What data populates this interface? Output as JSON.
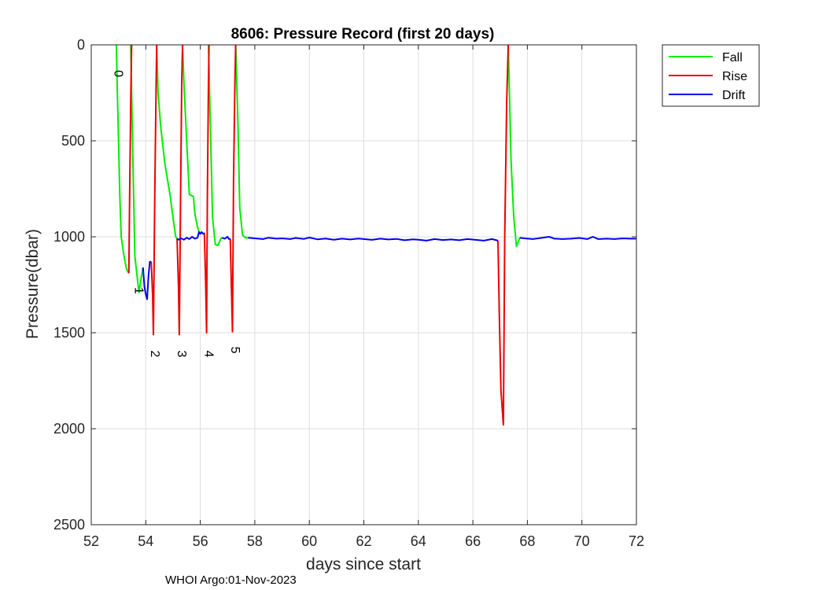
{
  "chart_data": {
    "type": "line",
    "title": "8606: Pressure Record (first 20 days)",
    "xlabel": "days since start",
    "ylabel": "Pressure(dbar)",
    "xlim": [
      52,
      72
    ],
    "ylim": [
      0,
      2500
    ],
    "y_reversed": true,
    "grid": true,
    "xticks": [
      52,
      54,
      56,
      58,
      60,
      62,
      64,
      66,
      68,
      70,
      72
    ],
    "yticks": [
      0,
      500,
      1000,
      1500,
      2000,
      2500
    ],
    "legend_position": "outside-top-right",
    "footer": "WHOI Argo:01-Nov-2023",
    "series": [
      {
        "name": "Fall",
        "color": "#00ee00",
        "segments": [
          [
            [
              52.92,
              0
            ],
            [
              52.95,
              200
            ],
            [
              53.0,
              500
            ],
            [
              53.05,
              800
            ],
            [
              53.1,
              1000
            ],
            [
              53.2,
              1100
            ],
            [
              53.3,
              1170
            ],
            [
              53.38,
              1190
            ]
          ],
          [
            [
              53.45,
              0
            ],
            [
              53.5,
              400
            ],
            [
              53.6,
              1100
            ],
            [
              53.75,
              1290
            ],
            [
              53.85,
              1200
            ],
            [
              53.9,
              1160
            ]
          ],
          [
            [
              54.4,
              0
            ],
            [
              54.45,
              250
            ],
            [
              54.55,
              430
            ],
            [
              54.7,
              620
            ],
            [
              54.9,
              790
            ],
            [
              55.0,
              900
            ],
            [
              55.1,
              1000
            ],
            [
              55.15,
              1010
            ]
          ],
          [
            [
              55.35,
              0
            ],
            [
              55.4,
              200
            ],
            [
              55.5,
              500
            ],
            [
              55.6,
              780
            ],
            [
              55.75,
              790
            ],
            [
              55.8,
              880
            ],
            [
              55.9,
              950
            ],
            [
              55.95,
              975
            ]
          ],
          [
            [
              56.3,
              0
            ],
            [
              56.35,
              300
            ],
            [
              56.45,
              900
            ],
            [
              56.55,
              1040
            ],
            [
              56.65,
              1045
            ],
            [
              56.75,
              1010
            ],
            [
              56.8,
              1005
            ]
          ],
          [
            [
              57.3,
              0
            ],
            [
              57.38,
              400
            ],
            [
              57.45,
              850
            ],
            [
              57.55,
              990
            ],
            [
              57.65,
              1005
            ],
            [
              57.75,
              1005
            ]
          ],
          [
            [
              67.3,
              0
            ],
            [
              67.35,
              300
            ],
            [
              67.4,
              600
            ],
            [
              67.5,
              900
            ],
            [
              67.6,
              1050
            ],
            [
              67.68,
              1020
            ],
            [
              67.72,
              1005
            ]
          ]
        ]
      },
      {
        "name": "Rise",
        "color": "#ee0000",
        "segments": [
          [
            [
              53.38,
              1190
            ],
            [
              53.4,
              900
            ],
            [
              53.45,
              300
            ],
            [
              53.48,
              0
            ]
          ],
          [
            [
              54.2,
              1130
            ],
            [
              54.25,
              1300
            ],
            [
              54.28,
              1510
            ],
            [
              54.33,
              800
            ],
            [
              54.38,
              200
            ],
            [
              54.4,
              0
            ]
          ],
          [
            [
              55.15,
              1010
            ],
            [
              55.2,
              1260
            ],
            [
              55.23,
              1510
            ],
            [
              55.27,
              900
            ],
            [
              55.32,
              200
            ],
            [
              55.35,
              0
            ]
          ],
          [
            [
              56.15,
              980
            ],
            [
              56.2,
              1250
            ],
            [
              56.23,
              1500
            ],
            [
              56.26,
              800
            ],
            [
              56.3,
              200
            ],
            [
              56.32,
              0
            ]
          ],
          [
            [
              57.1,
              1010
            ],
            [
              57.15,
              1300
            ],
            [
              57.18,
              1495
            ],
            [
              57.22,
              700
            ],
            [
              57.27,
              200
            ],
            [
              57.3,
              0
            ]
          ],
          [
            [
              66.92,
              1020
            ],
            [
              66.97,
              1400
            ],
            [
              67.03,
              1800
            ],
            [
              67.08,
              1900
            ],
            [
              67.12,
              1980
            ],
            [
              67.17,
              1000
            ],
            [
              67.24,
              300
            ],
            [
              67.3,
              0
            ]
          ]
        ]
      },
      {
        "name": "Drift",
        "color": "#0000ee",
        "segments": [
          [
            [
              53.9,
              1160
            ],
            [
              53.95,
              1260
            ],
            [
              54.0,
              1300
            ],
            [
              54.05,
              1325
            ],
            [
              54.1,
              1200
            ],
            [
              54.15,
              1130
            ],
            [
              54.2,
              1130
            ]
          ],
          [
            [
              55.15,
              1010
            ],
            [
              55.2,
              1015
            ],
            [
              55.3,
              1008
            ],
            [
              55.4,
              1015
            ],
            [
              55.5,
              1005
            ],
            [
              55.6,
              1012
            ],
            [
              55.7,
              1000
            ],
            [
              55.8,
              1010
            ],
            [
              55.9,
              1005
            ],
            [
              55.95,
              975
            ],
            [
              56.0,
              985
            ],
            [
              56.05,
              975
            ],
            [
              56.1,
              985
            ],
            [
              56.15,
              980
            ]
          ],
          [
            [
              56.8,
              1005
            ],
            [
              56.9,
              1010
            ],
            [
              57.0,
              1000
            ],
            [
              57.05,
              1012
            ],
            [
              57.1,
              1010
            ]
          ],
          [
            [
              57.75,
              1005
            ],
            [
              58.0,
              1008
            ],
            [
              58.3,
              1012
            ],
            [
              58.5,
              1005
            ],
            [
              58.8,
              1010
            ],
            [
              59.0,
              1008
            ],
            [
              59.3,
              1012
            ],
            [
              59.5,
              1006
            ],
            [
              59.8,
              1011
            ],
            [
              60.0,
              1004
            ],
            [
              60.3,
              1013
            ],
            [
              60.6,
              1009
            ],
            [
              60.9,
              1015
            ],
            [
              61.2,
              1010
            ],
            [
              61.5,
              1014
            ],
            [
              61.8,
              1009
            ],
            [
              62.0,
              1012
            ],
            [
              62.3,
              1016
            ],
            [
              62.6,
              1010
            ],
            [
              62.9,
              1014
            ],
            [
              63.2,
              1011
            ],
            [
              63.5,
              1018
            ],
            [
              63.8,
              1013
            ],
            [
              64.0,
              1015
            ],
            [
              64.3,
              1020
            ],
            [
              64.6,
              1012
            ],
            [
              64.9,
              1017
            ],
            [
              65.2,
              1014
            ],
            [
              65.5,
              1018
            ],
            [
              65.8,
              1012
            ],
            [
              66.1,
              1016
            ],
            [
              66.4,
              1020
            ],
            [
              66.7,
              1012
            ],
            [
              66.92,
              1020
            ]
          ],
          [
            [
              67.72,
              1005
            ],
            [
              67.9,
              1008
            ],
            [
              68.2,
              1012
            ],
            [
              68.5,
              1006
            ],
            [
              68.8,
              1000
            ],
            [
              69.0,
              1010
            ],
            [
              69.3,
              1012
            ],
            [
              69.6,
              1010
            ],
            [
              69.9,
              1006
            ],
            [
              70.2,
              1012
            ],
            [
              70.4,
              1000
            ],
            [
              70.6,
              1012
            ],
            [
              70.9,
              1010
            ],
            [
              71.2,
              1012
            ],
            [
              71.5,
              1008
            ],
            [
              71.8,
              1010
            ],
            [
              72.0,
              1010
            ]
          ]
        ]
      }
    ],
    "annotations": [
      {
        "text": "0",
        "x": 52.85,
        "y": 150
      },
      {
        "text": "1",
        "x": 53.6,
        "y": 1280
      },
      {
        "text": "2",
        "x": 54.2,
        "y": 1610
      },
      {
        "text": "3",
        "x": 55.17,
        "y": 1610
      },
      {
        "text": "4",
        "x": 56.17,
        "y": 1610
      },
      {
        "text": "5",
        "x": 57.13,
        "y": 1590
      }
    ]
  }
}
